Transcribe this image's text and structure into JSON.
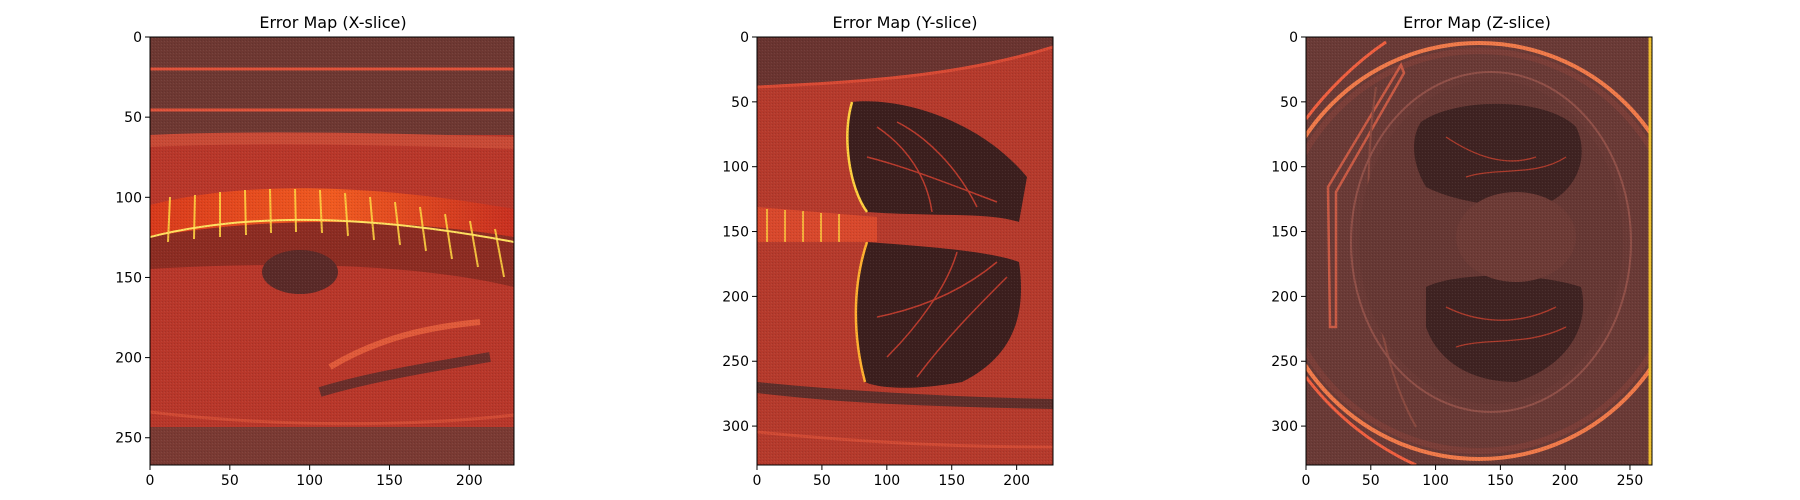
{
  "chart_data": [
    {
      "type": "heatmap",
      "title": "Error Map (X-slice)",
      "xlabel": "",
      "ylabel": "",
      "xlim": [
        0,
        228
      ],
      "ylim": [
        0,
        267
      ],
      "x_ticks": [
        0,
        50,
        100,
        150,
        200
      ],
      "y_ticks": [
        0,
        50,
        100,
        150,
        200,
        250
      ],
      "y_axis_inverted": true,
      "grid": false,
      "colormap": "hot (dark red to yellow)",
      "colors": {
        "background": "#7a3a33",
        "mid": "#c83a22",
        "high": "#f0a020",
        "peak": "#fff070"
      }
    },
    {
      "type": "heatmap",
      "title": "Error Map (Y-slice)",
      "xlabel": "",
      "ylabel": "",
      "xlim": [
        0,
        228
      ],
      "ylim": [
        0,
        330
      ],
      "x_ticks": [
        0,
        50,
        100,
        150,
        200
      ],
      "y_ticks": [
        0,
        50,
        100,
        150,
        200,
        250,
        300
      ],
      "y_axis_inverted": true,
      "grid": false,
      "colormap": "hot (dark red to yellow)",
      "colors": {
        "background": "#7a3a33",
        "mid": "#c83a22",
        "high": "#f0a020",
        "peak": "#fff070"
      }
    },
    {
      "type": "heatmap",
      "title": "Error Map (Z-slice)",
      "xlabel": "",
      "ylabel": "",
      "xlim": [
        0,
        267
      ],
      "ylim": [
        0,
        330
      ],
      "x_ticks": [
        0,
        50,
        100,
        150,
        200,
        250
      ],
      "y_ticks": [
        0,
        50,
        100,
        150,
        200,
        250,
        300
      ],
      "y_axis_inverted": true,
      "grid": false,
      "colormap": "hot (dark red to yellow)",
      "colors": {
        "background": "#6a3a36",
        "mid": "#b03a28",
        "high": "#f07030",
        "peak": "#fff070"
      }
    }
  ]
}
